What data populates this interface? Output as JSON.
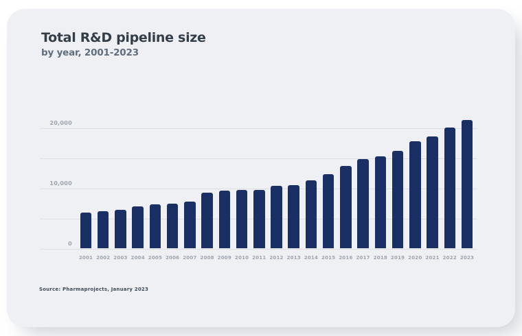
{
  "page": {
    "title": "Total R&D pipeline size",
    "subtitle": "by year, 2001-2023",
    "source": "Source: Pharmaprojects, January 2023"
  },
  "colors": {
    "page_background": "#ffffff",
    "card_background": "#eef0f4",
    "bar": "#1a2f63",
    "gridline": "#dbdee5",
    "axis_label": "#9ca3af",
    "title_text": "#333e49",
    "subtitle_text": "#5f6d7d",
    "source_text": "#404b59"
  },
  "chart_data": {
    "type": "bar",
    "title": "Total R&D pipeline size",
    "subtitle": "by year, 2001-2023",
    "categories": [
      "2001",
      "2002",
      "2003",
      "2004",
      "2005",
      "2006",
      "2007",
      "2008",
      "2009",
      "2010",
      "2011",
      "2012",
      "2013",
      "2014",
      "2015",
      "2016",
      "2017",
      "2018",
      "2019",
      "2020",
      "2021",
      "2022",
      "2023"
    ],
    "values": [
      5995,
      6198,
      6416,
      6994,
      7360,
      7406,
      7737,
      9217,
      9605,
      9737,
      9713,
      10452,
      10479,
      11307,
      12300,
      13718,
      14872,
      15267,
      16181,
      17737,
      18582,
      20109,
      21292
    ],
    "xlabel": "",
    "ylabel": "",
    "ylim": [
      0,
      22000
    ],
    "yticks": [
      {
        "value": 0,
        "label": "0"
      },
      {
        "value": 5000,
        "label": ""
      },
      {
        "value": 10000,
        "label": "10,000"
      },
      {
        "value": 15000,
        "label": ""
      },
      {
        "value": 20000,
        "label": "20,000"
      }
    ],
    "grid": "horizontal",
    "legend": "none",
    "source": "Source: Pharmaprojects, January 2023"
  }
}
